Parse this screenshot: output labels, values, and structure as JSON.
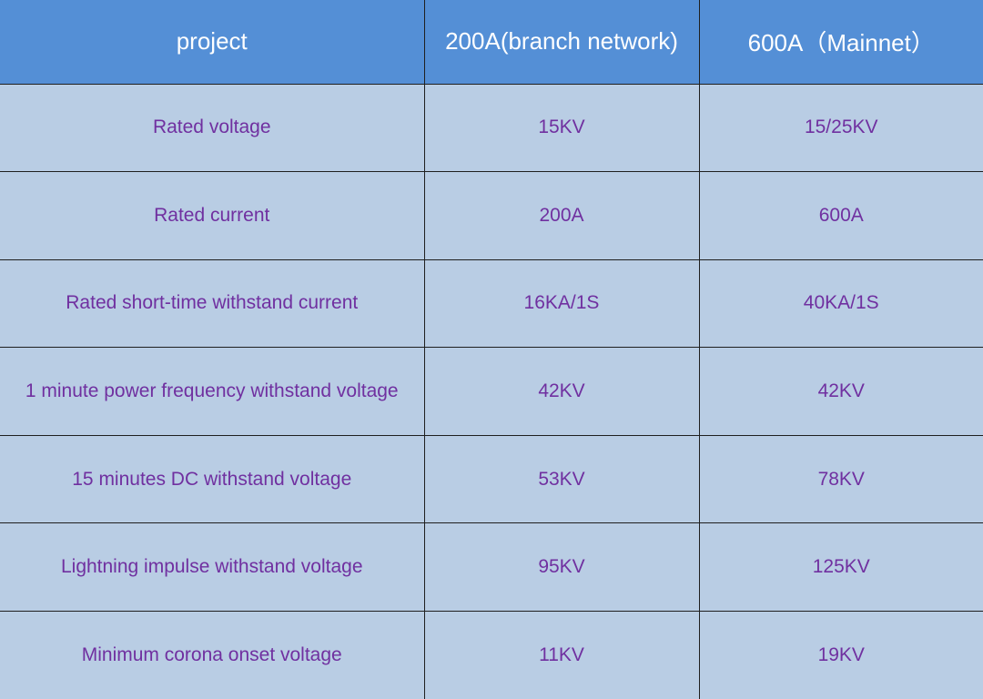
{
  "table": {
    "headers": [
      "project",
      "200A(branch network)",
      "600A（Mainnet）"
    ],
    "rows": [
      [
        "Rated voltage",
        "15KV",
        "15/25KV"
      ],
      [
        "Rated current",
        "200A",
        "600A"
      ],
      [
        "Rated short-time withstand current",
        "16KA/1S",
        "40KA/1S"
      ],
      [
        "1 minute power frequency withstand voltage",
        "42KV",
        "42KV"
      ],
      [
        "15 minutes DC withstand voltage",
        "53KV",
        "78KV"
      ],
      [
        "Lightning impulse withstand voltage",
        "95KV",
        "125KV"
      ],
      [
        "Minimum corona onset voltage",
        "11KV",
        "19KV"
      ]
    ]
  },
  "colors": {
    "header_bg": "#548fd6",
    "header_text": "#ffffff",
    "cell_bg": "#b9cde4",
    "cell_text": "#7030a0",
    "border": "#1f1f1f"
  }
}
